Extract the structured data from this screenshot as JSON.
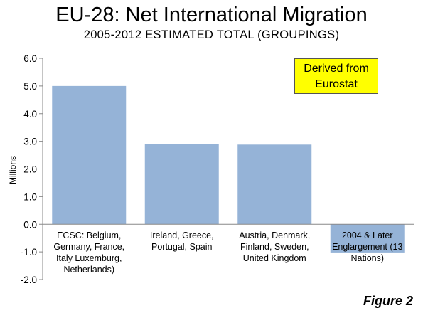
{
  "chart_data": {
    "type": "bar",
    "title": "EU-28: Net International Migration",
    "subtitle": "2005-2012 ESTIMATED TOTAL (GROUPINGS)",
    "ylabel": "Millions",
    "ylim": [
      -2.0,
      6.0
    ],
    "yticks": [
      "6.0",
      "5.0",
      "4.0",
      "3.0",
      "2.0",
      "1.0",
      "0.0",
      "-1.0",
      "-2.0"
    ],
    "categories": [
      "ECSC: Belgium, Germany, France, Italy Luxemburg, Netherlands)",
      "Ireland, Greece, Portugal, Spain",
      "Austria, Denmark, Finland, Sweden, United Kingdom",
      "2004 & Later Englargement (13 Nations)"
    ],
    "values": [
      5.0,
      2.9,
      2.88,
      -1.02
    ],
    "bar_color": "#95b3d7",
    "grid": false
  },
  "annotation": {
    "line1": "Derived from",
    "line2": "Eurostat",
    "color": "#ffff00"
  },
  "figure_label": "Figure 2"
}
